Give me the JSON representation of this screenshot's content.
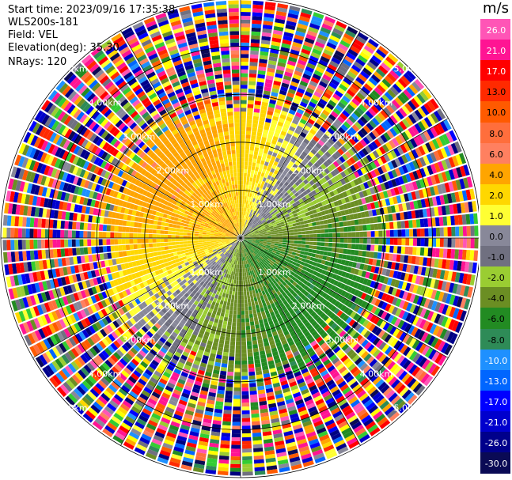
{
  "header": {
    "start_time": "Start time: 2023/09/16 17:35:38",
    "instrument": "WLS200s-181",
    "field": "Field: VEL",
    "elevation": "Elevation(deg): 35.30",
    "nrays": "NRays: 120"
  },
  "chart_data": {
    "type": "heatmap",
    "projection": "polar-ppi",
    "field": "VEL",
    "units": "m/s",
    "n_rays": 120,
    "elevation_deg": 35.3,
    "range_rings_km": [
      1.0,
      2.0,
      3.0,
      4.0,
      5.0
    ],
    "ring_labels": [
      "1.00km",
      "2.00km",
      "3.00km",
      "4.00km",
      "5.00km"
    ],
    "max_range_km": 5.0,
    "colorbar": {
      "unit_label": "m/s",
      "ticks": [
        "26.0",
        "21.0",
        "17.0",
        "13.0",
        "10.0",
        "8.0",
        "6.0",
        "4.0",
        "2.0",
        "1.0",
        "0.0",
        "-1.0",
        "-2.0",
        "-4.0",
        "-6.0",
        "-8.0",
        "-10.0",
        "-13.0",
        "-17.0",
        "-21.0",
        "-26.0",
        "-30.0"
      ],
      "bins": [
        {
          "min": 26,
          "max": 30,
          "color": "#ff55b6"
        },
        {
          "min": 21,
          "max": 26,
          "color": "#ff1493"
        },
        {
          "min": 17,
          "max": 21,
          "color": "#ff0000"
        },
        {
          "min": 13,
          "max": 17,
          "color": "#ff2a00"
        },
        {
          "min": 10,
          "max": 13,
          "color": "#ff5a00"
        },
        {
          "min": 8,
          "max": 10,
          "color": "#ff6e3c"
        },
        {
          "min": 6,
          "max": 8,
          "color": "#ff8060"
        },
        {
          "min": 4,
          "max": 6,
          "color": "#ffa500"
        },
        {
          "min": 2,
          "max": 4,
          "color": "#ffd700"
        },
        {
          "min": 1,
          "max": 2,
          "color": "#ffff33"
        },
        {
          "min": 0,
          "max": 1,
          "color": "#888899"
        },
        {
          "min": -1,
          "max": 0,
          "color": "#707080"
        },
        {
          "min": -2,
          "max": -1,
          "color": "#9acd32"
        },
        {
          "min": -4,
          "max": -2,
          "color": "#6b8e23"
        },
        {
          "min": -6,
          "max": -4,
          "color": "#228b22"
        },
        {
          "min": -8,
          "max": -6,
          "color": "#2e8b57"
        },
        {
          "min": -10,
          "max": -8,
          "color": "#1e90ff"
        },
        {
          "min": -13,
          "max": -10,
          "color": "#0066ff"
        },
        {
          "min": -17,
          "max": -13,
          "color": "#0000ff"
        },
        {
          "min": -21,
          "max": -17,
          "color": "#0000cd"
        },
        {
          "min": -26,
          "max": -21,
          "color": "#00008b"
        },
        {
          "min": -30,
          "max": -26,
          "color": "#0a0a55"
        }
      ]
    },
    "velocity_pattern": {
      "inner_signal_range_km": 2.8,
      "positive_sector": "west-north (approaching yellow/orange, 1 to 6 m/s)",
      "negative_sector": "east-south (green, -1 to -6 m/s)",
      "outer_region": "noise, random colors"
    }
  }
}
